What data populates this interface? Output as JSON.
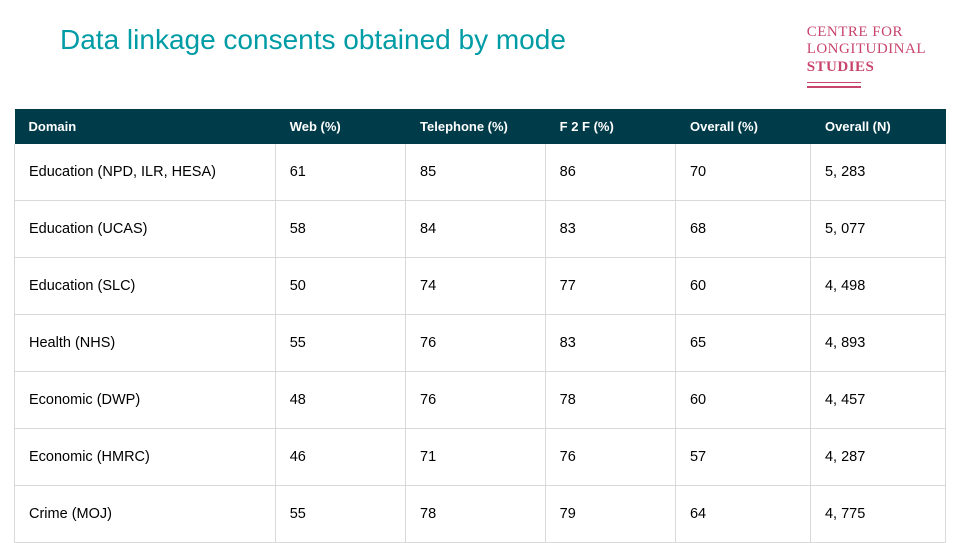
{
  "title": "Data linkage consents obtained by mode",
  "logo": {
    "line1": "CENTRE FOR",
    "line2": "LONGITUDINAL",
    "line3": "STUDIES",
    "color": "#c8466e"
  },
  "colors": {
    "title": "#009ca6",
    "header_bg": "#003b4a",
    "header_text": "#ffffff",
    "cell_text": "#000000",
    "border": "#d9d9d9"
  },
  "table": {
    "type": "table",
    "columns": [
      "Domain",
      "Web (%)",
      "Telephone (%)",
      "F 2 F (%)",
      "Overall (%)",
      "Overall (N)"
    ],
    "column_widths_pct": [
      28,
      14,
      15,
      14,
      14.5,
      14.5
    ],
    "header_fontsize": 13,
    "cell_fontsize": 14.5,
    "rows": [
      [
        "Education (NPD, ILR, HESA)",
        "61",
        "85",
        "86",
        "70",
        "5, 283"
      ],
      [
        "Education (UCAS)",
        "58",
        "84",
        "83",
        "68",
        "5, 077"
      ],
      [
        "Education (SLC)",
        "50",
        "74",
        "77",
        "60",
        "4, 498"
      ],
      [
        "Health (NHS)",
        "55",
        "76",
        "83",
        "65",
        "4, 893"
      ],
      [
        "Economic (DWP)",
        "48",
        "76",
        "78",
        "60",
        "4, 457"
      ],
      [
        "Economic (HMRC)",
        "46",
        "71",
        "76",
        "57",
        "4, 287"
      ],
      [
        "Crime (MOJ)",
        "55",
        "78",
        "79",
        "64",
        "4, 775"
      ]
    ]
  }
}
